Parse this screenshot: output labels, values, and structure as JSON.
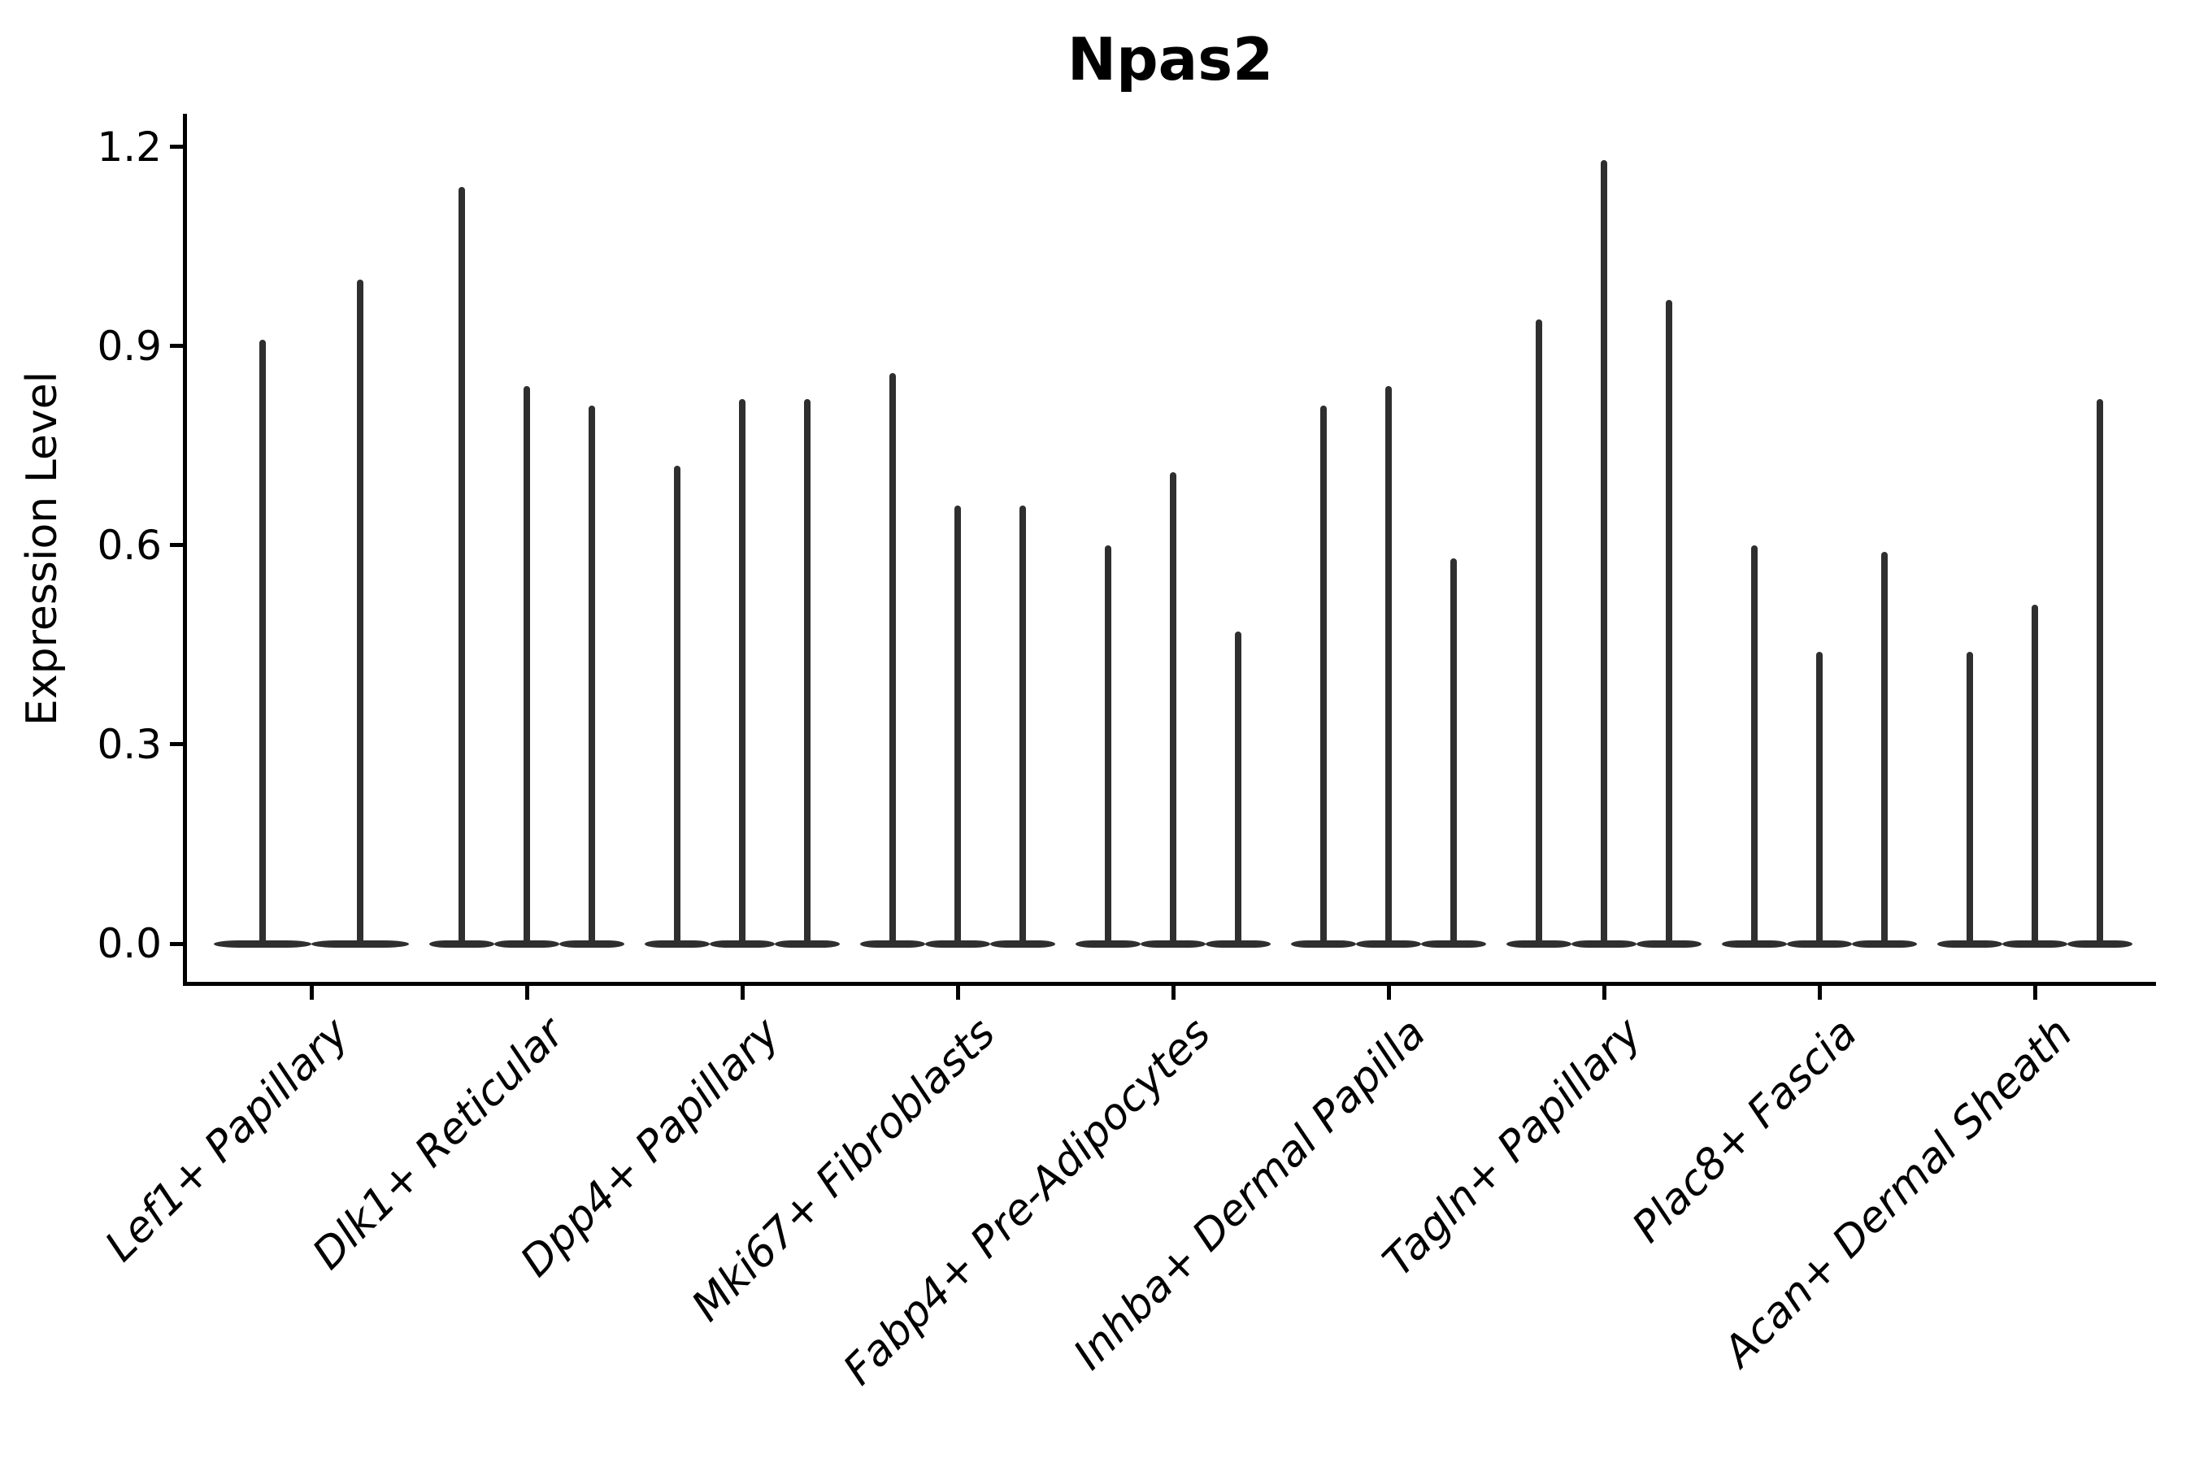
{
  "chart_data": {
    "type": "violin",
    "title": "Npas2",
    "xlabel": "",
    "ylabel": "Expression Level",
    "ylim": [
      0.0,
      1.2
    ],
    "yticks": [
      "0.0",
      "0.3",
      "0.6",
      "0.9",
      "1.2"
    ],
    "ytick_values": [
      0.0,
      0.3,
      0.6,
      0.9,
      1.2
    ],
    "grid": false,
    "legend": "none",
    "violin_color": "#2f2f2f",
    "axis_color": "#000000",
    "note": "Each category shows thin violins: density concentrated at 0 with a narrow spike up to the per-violin maximum expression value.",
    "categories": [
      {
        "label": "Lef1+ Papillary",
        "violin_maxima": [
          0.91,
          1.0
        ]
      },
      {
        "label": "Dlk1+ Reticular",
        "violin_maxima": [
          1.14,
          0.84,
          0.81
        ]
      },
      {
        "label": "Dpp4+ Papillary",
        "violin_maxima": [
          0.72,
          0.82,
          0.82
        ]
      },
      {
        "label": "Mki67+ Fibroblasts",
        "violin_maxima": [
          0.86,
          0.66,
          0.66
        ]
      },
      {
        "label": "Fabp4+ Pre-Adipocytes",
        "violin_maxima": [
          0.6,
          0.71,
          0.47
        ]
      },
      {
        "label": "Inhba+ Dermal Papilla",
        "violin_maxima": [
          0.81,
          0.84,
          0.58
        ]
      },
      {
        "label": "Tagln+ Papillary",
        "violin_maxima": [
          0.94,
          1.18,
          0.97
        ]
      },
      {
        "label": "Plac8+ Fascia",
        "violin_maxima": [
          0.6,
          0.44,
          0.59
        ]
      },
      {
        "label": "Acan+ Dermal Sheath",
        "violin_maxima": [
          0.44,
          0.51,
          0.82
        ]
      }
    ]
  }
}
